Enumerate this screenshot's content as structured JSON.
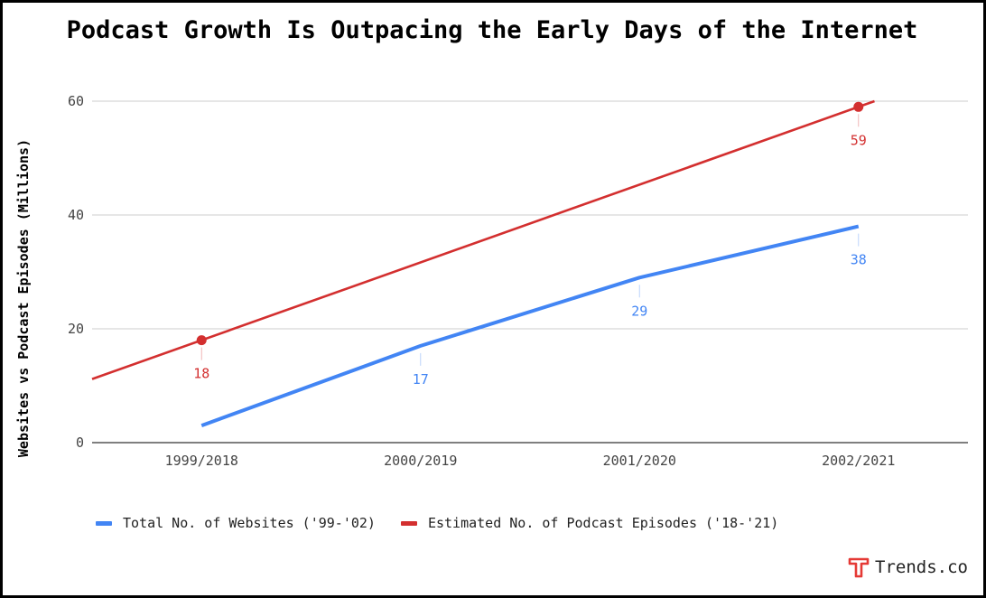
{
  "colors": {
    "websites": "#4285f4",
    "podcasts": "#d32f2f",
    "grid": "#cccccc",
    "axis": "#333333",
    "brand": "#e53935"
  },
  "chart_data": {
    "type": "line",
    "title": "Podcast Growth Is Outpacing the Early Days of the Internet",
    "xlabel": "",
    "ylabel": "Websites vs Podcast Episodes (Millions)",
    "categories": [
      "1999/2018",
      "2000/2019",
      "2001/2020",
      "2002/2021"
    ],
    "ylim": [
      0,
      60
    ],
    "yticks": [
      0,
      20,
      40,
      60
    ],
    "grid": true,
    "legend_position": "bottom",
    "series": [
      {
        "name": "Total No. of Websites ('99-'02)",
        "color": "#4285f4",
        "values": [
          3,
          17,
          29,
          38
        ],
        "labels": [
          "",
          "17",
          "29",
          "38"
        ]
      },
      {
        "name": "Estimated No. of Podcast Episodes ('18-'21)",
        "color": "#d32f2f",
        "values": [
          18,
          31.7,
          45.3,
          59
        ],
        "labels": [
          "18",
          "",
          "",
          "59"
        ],
        "trendline": true,
        "marked_points": [
          0,
          3
        ]
      }
    ]
  },
  "brand": {
    "name": "Trends.co",
    "icon": "trends-logo-icon"
  }
}
